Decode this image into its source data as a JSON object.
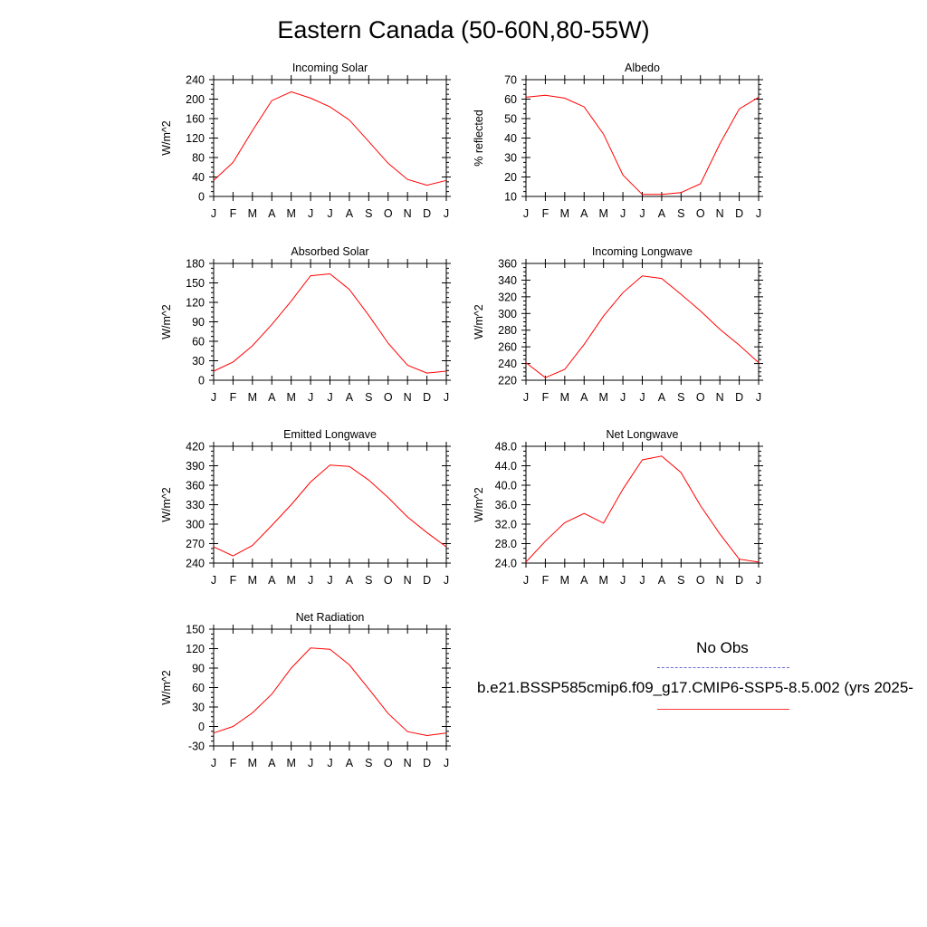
{
  "title": "Eastern Canada (50-60N,80-55W)",
  "months": [
    "J",
    "F",
    "M",
    "A",
    "M",
    "J",
    "J",
    "A",
    "S",
    "O",
    "N",
    "D",
    "J"
  ],
  "legend": {
    "obs_label": "No Obs",
    "obs_color": "#6b6bd6",
    "case_label": "b.e21.BSSP585cmip6.f09_g17.CMIP6-SSP5-8.5.002 (yrs 2025-",
    "case_color": "#ff0000"
  },
  "chart_data": [
    {
      "type": "line",
      "title": "Incoming Solar",
      "ylabel": "W/m^2",
      "ylim": [
        0,
        240
      ],
      "yticks": [
        "0",
        "40",
        "80",
        "120",
        "160",
        "200",
        "240"
      ],
      "series": [
        {
          "values": [
            33,
            70,
            135,
            197,
            215,
            202,
            184,
            157,
            113,
            68,
            35,
            23,
            33
          ]
        }
      ]
    },
    {
      "type": "line",
      "title": "Albedo",
      "ylabel": "% reflected",
      "ylim": [
        10,
        70
      ],
      "yticks": [
        "10",
        "20",
        "30",
        "40",
        "50",
        "60",
        "70"
      ],
      "series": [
        {
          "values": [
            61,
            62,
            60.5,
            56,
            42,
            21,
            11,
            11,
            12,
            16.5,
            37,
            55,
            61
          ]
        }
      ]
    },
    {
      "type": "line",
      "title": "Absorbed Solar",
      "ylabel": "W/m^2",
      "ylim": [
        0,
        180
      ],
      "yticks": [
        "0",
        "30",
        "60",
        "90",
        "120",
        "150",
        "180"
      ],
      "series": [
        {
          "values": [
            14,
            28,
            53,
            86,
            122,
            161,
            164,
            140,
            100,
            57,
            23,
            11,
            14
          ]
        }
      ]
    },
    {
      "type": "line",
      "title": "Incoming Longwave",
      "ylabel": "W/m^2",
      "ylim": [
        220,
        360
      ],
      "yticks": [
        "220",
        "240",
        "260",
        "280",
        "300",
        "320",
        "340",
        "360"
      ],
      "series": [
        {
          "values": [
            241,
            223,
            233,
            263,
            297,
            325,
            345,
            342,
            323,
            303,
            281,
            262,
            241
          ]
        }
      ]
    },
    {
      "type": "line",
      "title": "Emitted Longwave",
      "ylabel": "W/m^2",
      "ylim": [
        240,
        420
      ],
      "yticks": [
        "240",
        "270",
        "300",
        "330",
        "360",
        "390",
        "420"
      ],
      "series": [
        {
          "values": [
            265,
            251,
            267,
            298,
            330,
            365,
            391,
            389,
            368,
            341,
            311,
            287,
            265
          ]
        }
      ]
    },
    {
      "type": "line",
      "title": "Net Longwave",
      "ylabel": "W/m^2",
      "ylim": [
        24,
        48
      ],
      "yticks": [
        "24.0",
        "28.0",
        "32.0",
        "36.0",
        "40.0",
        "44.0",
        "48.0"
      ],
      "series": [
        {
          "values": [
            24.2,
            28.5,
            32.3,
            34.2,
            32.2,
            39.2,
            45.2,
            46,
            42.6,
            35.8,
            30,
            24.8,
            24.2
          ]
        }
      ]
    },
    {
      "type": "line",
      "title": "Net Radiation",
      "ylabel": "W/m^2",
      "ylim": [
        -30,
        150
      ],
      "yticks": [
        "-30",
        "0",
        "30",
        "60",
        "90",
        "120",
        "150"
      ],
      "series": [
        {
          "values": [
            -10,
            0,
            21,
            50,
            90,
            121,
            119,
            95,
            58,
            20,
            -8,
            -14,
            -10
          ]
        }
      ]
    }
  ]
}
